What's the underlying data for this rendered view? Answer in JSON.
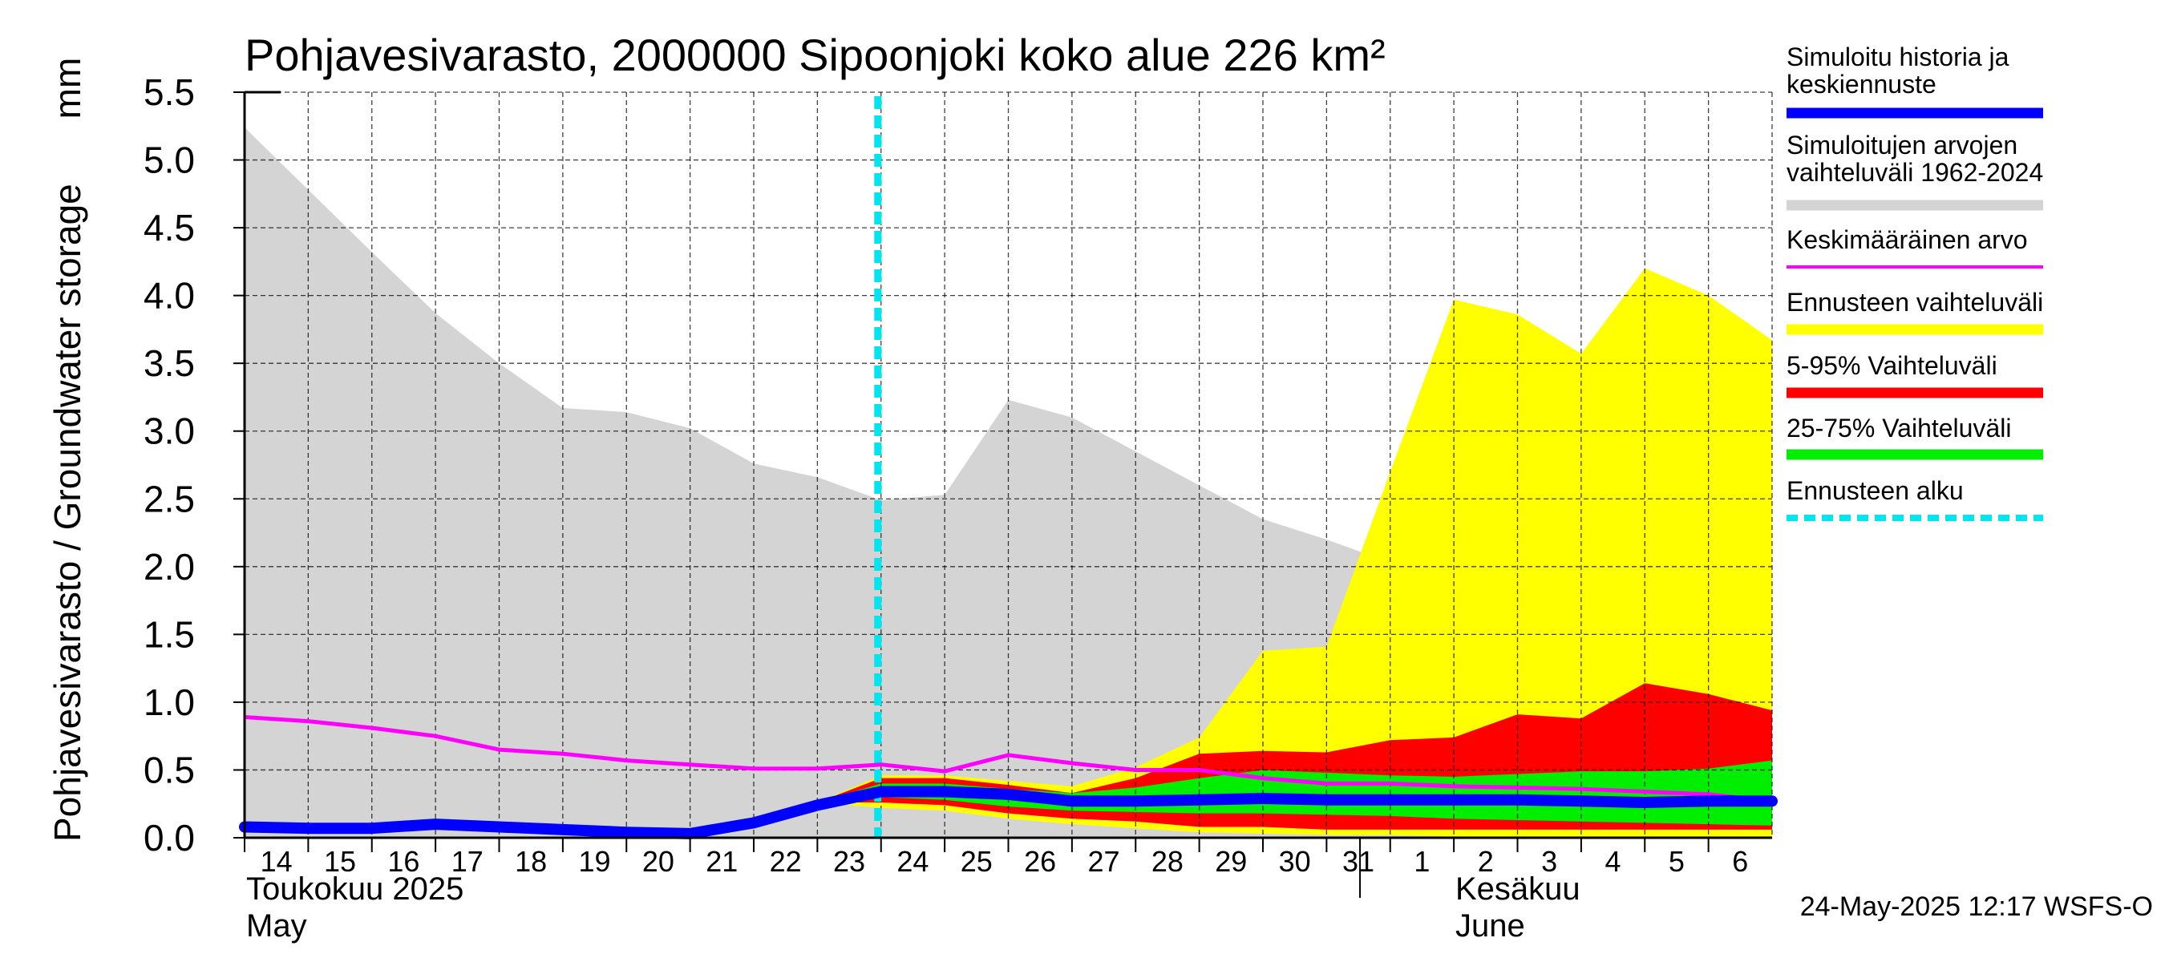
{
  "chart_data": {
    "type": "area",
    "title": "Pohjavesivarasto, 2000000 Sipoonjoki koko alue 226 km²",
    "ylabel": "Pohjavesivarasto / Groundwater storage",
    "yunit": "mm",
    "ylim": [
      0,
      5.5
    ],
    "yticks": [
      "0.0",
      "0.5",
      "1.0",
      "1.5",
      "2.0",
      "2.5",
      "3.0",
      "3.5",
      "4.0",
      "4.5",
      "5.0",
      "5.5"
    ],
    "x_dates": [
      "2025-05-14",
      "2025-05-15",
      "2025-05-16",
      "2025-05-17",
      "2025-05-18",
      "2025-05-19",
      "2025-05-20",
      "2025-05-21",
      "2025-05-22",
      "2025-05-23",
      "2025-05-24",
      "2025-05-25",
      "2025-05-26",
      "2025-05-27",
      "2025-05-28",
      "2025-05-29",
      "2025-05-30",
      "2025-05-31",
      "2025-06-01",
      "2025-06-02",
      "2025-06-03",
      "2025-06-04",
      "2025-06-05",
      "2025-06-06",
      "2025-06-07"
    ],
    "xtick_labels": [
      "14",
      "15",
      "16",
      "17",
      "18",
      "19",
      "20",
      "21",
      "22",
      "23",
      "24",
      "25",
      "26",
      "27",
      "28",
      "29",
      "30",
      "31",
      "1",
      "2",
      "3",
      "4",
      "5",
      "6"
    ],
    "month_labels": [
      {
        "fi": "Toukokuu  2025",
        "en": "May"
      },
      {
        "fi": "Kesäkuu",
        "en": "June"
      }
    ],
    "grid": true,
    "legend_position": "right",
    "forecast_start": "2025-05-24",
    "series": [
      {
        "name": "Simuloitujen arvojen vaihteluväli 1962-2024",
        "kind": "band",
        "color": "#d4d4d4",
        "upper": [
          5.24,
          4.78,
          4.32,
          3.87,
          3.5,
          3.17,
          3.14,
          3.02,
          2.76,
          2.66,
          2.49,
          2.53,
          3.23,
          3.1,
          2.85,
          2.6,
          2.35,
          2.2,
          2.03,
          1.98,
          1.97,
          1.96,
          1.95,
          1.94,
          1.93
        ],
        "lower": [
          0.0,
          0.0,
          0.0,
          0.0,
          0.0,
          0.0,
          0.0,
          0.0,
          0.0,
          0.0,
          0.0,
          0.0,
          0.0,
          0.0,
          0.0,
          0.0,
          0.0,
          0.0,
          0.0,
          0.0,
          0.0,
          0.0,
          0.0,
          0.0,
          0.0
        ]
      },
      {
        "name": "Ennusteen vaihteluväli",
        "kind": "band",
        "color": "#ffff00",
        "upper": [
          null,
          null,
          null,
          null,
          null,
          null,
          null,
          null,
          null,
          0.26,
          0.46,
          0.46,
          0.42,
          0.38,
          0.52,
          0.74,
          1.38,
          1.41,
          2.7,
          3.97,
          3.86,
          3.57,
          4.2,
          4.0,
          3.67
        ],
        "lower": [
          null,
          null,
          null,
          null,
          null,
          null,
          null,
          null,
          null,
          0.26,
          0.22,
          0.2,
          0.14,
          0.1,
          0.07,
          0.04,
          0.03,
          0.02,
          0.02,
          0.01,
          0.01,
          0.01,
          0.01,
          0.01,
          0.01
        ]
      },
      {
        "name": "5-95% Vaihteluväli",
        "kind": "band",
        "color": "#ff0000",
        "upper": [
          null,
          null,
          null,
          null,
          null,
          null,
          null,
          null,
          null,
          0.26,
          0.44,
          0.44,
          0.39,
          0.33,
          0.44,
          0.62,
          0.64,
          0.63,
          0.72,
          0.74,
          0.91,
          0.88,
          1.14,
          1.06,
          0.94
        ],
        "lower": [
          null,
          null,
          null,
          null,
          null,
          null,
          null,
          null,
          null,
          0.26,
          0.26,
          0.24,
          0.18,
          0.14,
          0.12,
          0.08,
          0.08,
          0.06,
          0.06,
          0.06,
          0.06,
          0.06,
          0.06,
          0.06,
          0.06
        ]
      },
      {
        "name": "25-75% Vaihteluväli",
        "kind": "band",
        "color": "#00ee00",
        "upper": [
          null,
          null,
          null,
          null,
          null,
          null,
          null,
          null,
          null,
          0.26,
          0.4,
          0.4,
          0.36,
          0.33,
          0.37,
          0.44,
          0.5,
          0.48,
          0.46,
          0.45,
          0.47,
          0.49,
          0.49,
          0.51,
          0.57
        ],
        "lower": [
          null,
          null,
          null,
          null,
          null,
          null,
          null,
          null,
          null,
          0.26,
          0.3,
          0.28,
          0.23,
          0.2,
          0.19,
          0.18,
          0.18,
          0.17,
          0.16,
          0.14,
          0.13,
          0.12,
          0.11,
          0.1,
          0.09
        ]
      },
      {
        "name": "Keskimääräinen arvo",
        "kind": "line",
        "color": "#ff00ff",
        "values": [
          0.89,
          0.86,
          0.81,
          0.75,
          0.65,
          0.62,
          0.57,
          0.54,
          0.51,
          0.51,
          0.54,
          0.49,
          0.61,
          0.55,
          0.5,
          0.5,
          0.44,
          0.4,
          0.4,
          0.38,
          0.37,
          0.36,
          0.34,
          0.32,
          0.27
        ]
      },
      {
        "name": "Simuloitu historia ja keskiennuste",
        "kind": "line",
        "color": "#0000ff",
        "values": [
          0.08,
          0.07,
          0.07,
          0.1,
          0.08,
          0.06,
          0.04,
          0.03,
          0.11,
          0.24,
          0.34,
          0.34,
          0.32,
          0.27,
          0.27,
          0.28,
          0.29,
          0.28,
          0.28,
          0.28,
          0.28,
          0.27,
          0.26,
          0.27,
          0.27
        ]
      }
    ],
    "legend": [
      {
        "label": "Simuloitu historia ja keskiennuste",
        "color": "#0000ff",
        "style": "solid"
      },
      {
        "label": "Simuloitujen arvojen vaihteluväli 1962-2024",
        "color": "#d4d4d4",
        "style": "solid"
      },
      {
        "label": "Keskimääräinen arvo",
        "color": "#ff00ff",
        "style": "thin"
      },
      {
        "label": "Ennusteen vaihteluväli",
        "color": "#ffff00",
        "style": "solid"
      },
      {
        "label": "5-95% Vaihteluväli",
        "color": "#ff0000",
        "style": "solid"
      },
      {
        "label": "25-75% Vaihteluväli",
        "color": "#00ee00",
        "style": "solid"
      },
      {
        "label": "Ennusteen alku",
        "color": "#00e5ee",
        "style": "dashed"
      }
    ],
    "footer": "24-May-2025 12:17 WSFS-O"
  }
}
